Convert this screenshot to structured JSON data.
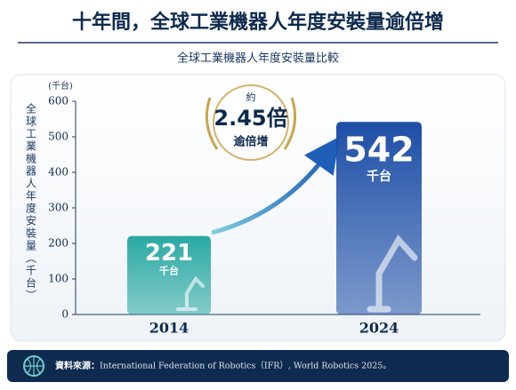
{
  "chart_data": {
    "type": "bar",
    "title": "十年間，全球工業機器人年度安裝量逾倍增",
    "subtitle": "全球工業機器人年度安裝量比較",
    "y_unit": "(千台)",
    "y_label": "全球工業機器人年度安裝量（千台）",
    "categories": [
      "2014",
      "2024"
    ],
    "values": [
      221,
      542
    ],
    "value_unit": "千台",
    "colors": [
      "#2aa9a3",
      "#1d4ea6"
    ],
    "ylim": [
      0,
      600
    ],
    "yticks": [
      0,
      100,
      200,
      300,
      400,
      500,
      600
    ],
    "badge": {
      "prefix": "約",
      "ratio": "2.45倍",
      "suffix": "逾倍增"
    },
    "source_label": "資料來源：",
    "source": "International Federation of Robotics（IFR）, World Robotics 2025。"
  }
}
